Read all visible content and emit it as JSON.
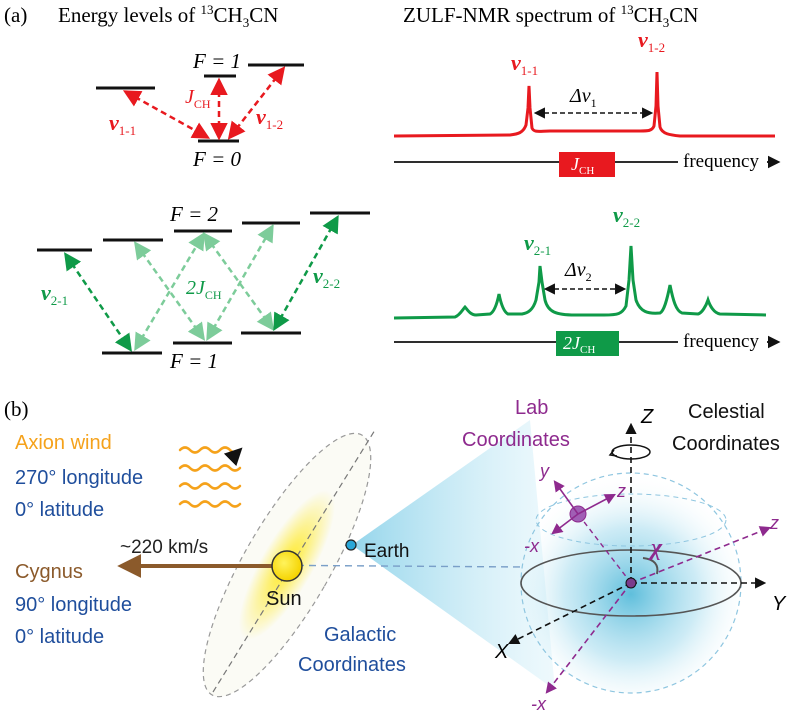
{
  "panel_a": {
    "label": "(a)",
    "energy_title_prefix": "Energy levels of ",
    "spectrum_title_prefix": "ZULF-NMR spectrum of ",
    "mass_number": "13",
    "molecule_ch": "CH",
    "molecule_sub3": "3",
    "molecule_cn": "CN",
    "top": {
      "F_upper": "F = 1",
      "F_lower": "F = 0",
      "coupling_J": "J",
      "coupling_sub": "CH",
      "nu_a": "ν",
      "nu_a_sub": "1-1",
      "nu_b": "ν",
      "nu_b_sub": "1-2",
      "delta": "Δν",
      "delta_sub": "1",
      "box_J": "J",
      "box_sub": "CH",
      "axis_label": "frequency",
      "color": "#e8191f"
    },
    "bottom": {
      "F_upper": "F = 2",
      "F_lower": "F = 1",
      "coupling_J": "2J",
      "coupling_sub": "CH",
      "nu_a": "ν",
      "nu_a_sub": "2-1",
      "nu_b": "ν",
      "nu_b_sub": "2-2",
      "delta": "Δν",
      "delta_sub": "2",
      "box_J": "2J",
      "box_sub": "CH",
      "axis_label": "frequency",
      "color": "#0f9a48",
      "light_color": "#7dcc9a"
    }
  },
  "panel_b": {
    "label": "(b)",
    "axion_wind": "Axion wind",
    "axion_lon": "270° longitude",
    "axion_lat": "0° latitude",
    "speed": "~220 km/s",
    "cygnus": "Cygnus",
    "cygnus_lon": "90° longitude",
    "cygnus_lat": "0° latitude",
    "sun": "Sun",
    "earth": "Earth",
    "galactic_1": "Galactic",
    "galactic_2": "Coordinates",
    "lab_1": "Lab",
    "lab_2": "Coordinates",
    "celestial_1": "Celestial",
    "celestial_2": "Coordinates",
    "axis_X": "X",
    "axis_Y": "Y",
    "axis_Z": "Z",
    "lab_y": "y",
    "lab_z_upper": "z",
    "lab_minus_x_upper": "-x",
    "lab_z_right": "z",
    "lab_minus_x_lower": "-x",
    "angle_chi": "χ",
    "colors": {
      "axion": "#f5a21b",
      "blue_text": "#1f4e9c",
      "cygnus": "#8b5a2b",
      "purple": "#8e2a8e",
      "sun": "#ffe600"
    }
  }
}
